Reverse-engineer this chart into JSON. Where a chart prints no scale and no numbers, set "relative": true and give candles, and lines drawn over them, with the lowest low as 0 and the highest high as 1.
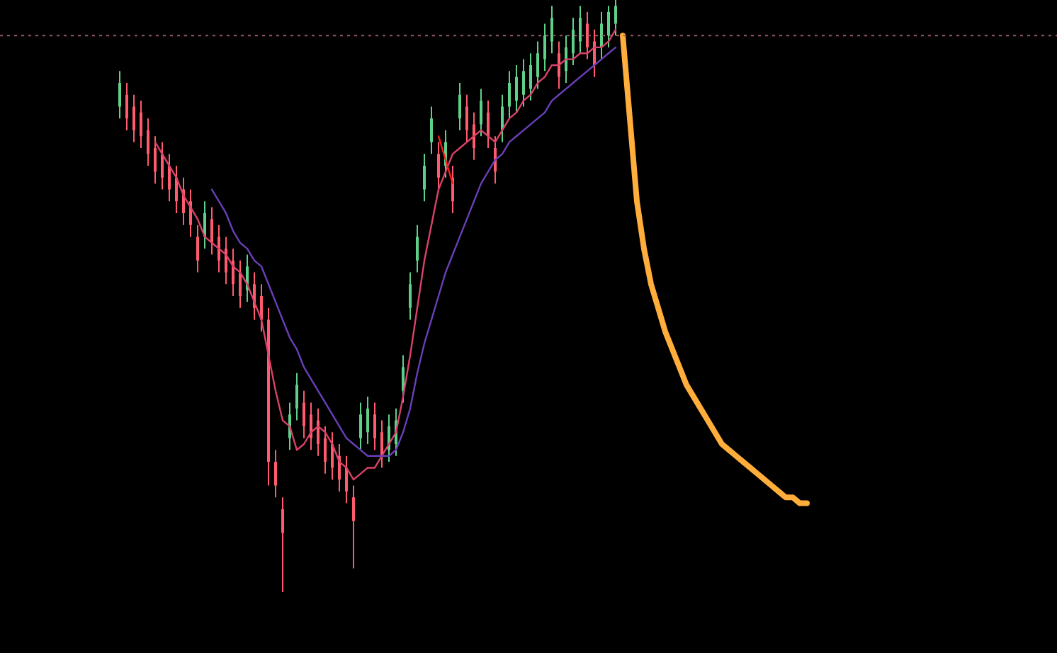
{
  "chart_data": {
    "type": "candlestick",
    "relative": true,
    "categories": [
      null,
      null,
      null,
      null,
      null,
      null,
      null,
      null,
      null,
      null,
      null,
      null,
      null,
      null,
      null,
      null,
      null,
      null,
      null,
      null,
      null,
      null,
      null,
      null,
      null,
      null,
      null,
      null,
      null,
      null,
      null,
      null,
      null,
      null,
      null,
      null,
      null,
      null,
      null,
      null,
      null,
      null,
      null,
      null,
      null,
      null,
      null,
      null,
      null,
      null,
      null,
      null,
      null,
      null,
      null,
      null,
      null,
      null,
      null,
      null,
      null,
      null,
      null,
      null,
      null,
      null,
      null,
      null,
      null,
      null,
      null,
      null,
      null,
      null,
      null,
      null,
      null,
      null,
      null,
      null,
      null,
      null,
      null,
      null,
      null,
      null,
      null,
      null,
      null,
      null,
      null,
      null,
      null,
      null,
      null,
      null,
      null,
      null
    ],
    "ref_lines": [
      {
        "axis": "y",
        "value": 0.94,
        "color": "#9a5a66",
        "line_style": "dotted"
      }
    ],
    "series": [
      {
        "ohlc": [
          [
            0.82,
            0.88,
            0.8,
            0.86
          ],
          [
            0.84,
            0.86,
            0.78,
            0.8
          ],
          [
            0.82,
            0.84,
            0.76,
            0.78
          ],
          [
            0.81,
            0.83,
            0.75,
            0.77
          ],
          [
            0.78,
            0.8,
            0.72,
            0.74
          ],
          [
            0.75,
            0.77,
            0.69,
            0.71
          ],
          [
            0.74,
            0.76,
            0.68,
            0.7
          ],
          [
            0.72,
            0.74,
            0.66,
            0.68
          ],
          [
            0.7,
            0.72,
            0.64,
            0.66
          ],
          [
            0.68,
            0.7,
            0.62,
            0.64
          ],
          [
            0.66,
            0.68,
            0.6,
            0.62
          ],
          [
            0.6,
            0.62,
            0.54,
            0.56
          ],
          [
            0.6,
            0.66,
            0.58,
            0.64
          ],
          [
            0.63,
            0.65,
            0.57,
            0.59
          ],
          [
            0.6,
            0.62,
            0.54,
            0.56
          ],
          [
            0.58,
            0.6,
            0.52,
            0.54
          ],
          [
            0.56,
            0.58,
            0.5,
            0.52
          ],
          [
            0.54,
            0.56,
            0.48,
            0.5
          ],
          [
            0.51,
            0.57,
            0.49,
            0.55
          ],
          [
            0.52,
            0.54,
            0.46,
            0.48
          ],
          [
            0.5,
            0.52,
            0.44,
            0.46
          ],
          [
            0.46,
            0.48,
            0.18,
            0.22
          ],
          [
            0.22,
            0.24,
            0.16,
            0.18
          ],
          [
            0.14,
            0.16,
            0.0,
            0.1
          ],
          [
            0.26,
            0.32,
            0.24,
            0.3
          ],
          [
            0.31,
            0.37,
            0.29,
            0.35
          ],
          [
            0.32,
            0.34,
            0.26,
            0.28
          ],
          [
            0.3,
            0.32,
            0.24,
            0.26
          ],
          [
            0.29,
            0.31,
            0.23,
            0.25
          ],
          [
            0.26,
            0.28,
            0.2,
            0.22
          ],
          [
            0.25,
            0.27,
            0.19,
            0.21
          ],
          [
            0.23,
            0.25,
            0.17,
            0.19
          ],
          [
            0.21,
            0.23,
            0.15,
            0.17
          ],
          [
            0.16,
            0.18,
            0.04,
            0.12
          ],
          [
            0.26,
            0.32,
            0.24,
            0.3
          ],
          [
            0.27,
            0.33,
            0.25,
            0.31
          ],
          [
            0.3,
            0.32,
            0.24,
            0.26
          ],
          [
            0.27,
            0.29,
            0.21,
            0.23
          ],
          [
            0.24,
            0.3,
            0.22,
            0.28
          ],
          [
            0.25,
            0.31,
            0.23,
            0.29
          ],
          [
            0.34,
            0.4,
            0.32,
            0.38
          ],
          [
            0.48,
            0.54,
            0.46,
            0.52
          ],
          [
            0.56,
            0.62,
            0.54,
            0.6
          ],
          [
            0.68,
            0.74,
            0.66,
            0.72
          ],
          [
            0.76,
            0.82,
            0.74,
            0.8
          ],
          [
            0.74,
            0.76,
            0.68,
            0.7
          ],
          [
            0.72,
            0.78,
            0.7,
            0.76
          ],
          [
            0.7,
            0.72,
            0.64,
            0.66
          ],
          [
            0.8,
            0.86,
            0.78,
            0.84
          ],
          [
            0.82,
            0.84,
            0.76,
            0.78
          ],
          [
            0.79,
            0.81,
            0.73,
            0.75
          ],
          [
            0.79,
            0.85,
            0.77,
            0.83
          ],
          [
            0.81,
            0.83,
            0.75,
            0.77
          ],
          [
            0.75,
            0.77,
            0.69,
            0.71
          ],
          [
            0.78,
            0.84,
            0.76,
            0.82
          ],
          [
            0.82,
            0.88,
            0.8,
            0.86
          ],
          [
            0.83,
            0.89,
            0.81,
            0.87
          ],
          [
            0.84,
            0.9,
            0.82,
            0.88
          ],
          [
            0.85,
            0.91,
            0.83,
            0.89
          ],
          [
            0.87,
            0.93,
            0.85,
            0.91
          ],
          [
            0.9,
            0.96,
            0.88,
            0.94
          ],
          [
            0.93,
            0.99,
            0.91,
            0.97
          ],
          [
            0.91,
            0.93,
            0.85,
            0.87
          ],
          [
            0.88,
            0.94,
            0.86,
            0.92
          ],
          [
            0.91,
            0.97,
            0.89,
            0.95
          ],
          [
            0.93,
            0.99,
            0.91,
            0.97
          ],
          [
            0.96,
            0.98,
            0.9,
            0.92
          ],
          [
            0.93,
            0.95,
            0.87,
            0.89
          ],
          [
            0.92,
            0.98,
            0.9,
            0.96
          ],
          [
            0.94,
            0.99,
            0.92,
            0.98
          ],
          [
            0.96,
            1.0,
            0.94,
            0.99
          ],
          null,
          null,
          null,
          null,
          null,
          null,
          null,
          null,
          null,
          null,
          null,
          null,
          null,
          null,
          null,
          null,
          null,
          null,
          null,
          null,
          null,
          null,
          null,
          null,
          null,
          null,
          null
        ],
        "colors": [
          "#5fd08a",
          "#ff5a6e",
          "#ff5a6e",
          "#ff5a6e",
          "#ff5a6e",
          "#ff5a6e",
          "#ff5a6e",
          "#ff5a6e",
          "#ff5a6e",
          "#ff5a6e",
          "#ff5a6e",
          "#ff5a6e",
          "#5fd08a",
          "#ff5a6e",
          "#ff5a6e",
          "#ff5a6e",
          "#ff5a6e",
          "#ff5a6e",
          "#5fd08a",
          "#ff5a6e",
          "#ff5a6e",
          "#ff5a6e",
          "#ff5a6e",
          "#ff5a6e",
          "#5fd08a",
          "#5fd08a",
          "#ff5a6e",
          "#ff5a6e",
          "#ff5a6e",
          "#ff5a6e",
          "#ff5a6e",
          "#ff5a6e",
          "#ff5a6e",
          "#ff5a6e",
          "#5fd08a",
          "#5fd08a",
          "#ff5a6e",
          "#ff5a6e",
          "#5fd08a",
          "#5fd08a",
          "#5fd08a",
          "#5fd08a",
          "#5fd08a",
          "#5fd08a",
          "#5fd08a",
          "#ff5a6e",
          "#5fd08a",
          "#ff5a6e",
          "#5fd08a",
          "#ff5a6e",
          "#ff5a6e",
          "#5fd08a",
          "#ff5a6e",
          "#ff5a6e",
          "#5fd08a",
          "#5fd08a",
          "#5fd08a",
          "#5fd08a",
          "#5fd08a",
          "#5fd08a",
          "#5fd08a",
          "#5fd08a",
          "#ff5a6e",
          "#5fd08a",
          "#5fd08a",
          "#5fd08a",
          "#ff5a6e",
          "#ff5a6e",
          "#5fd08a",
          "#5fd08a",
          "#5fd08a",
          "#5fd08a",
          "#5fd08a",
          null,
          null,
          null,
          null,
          null,
          null,
          null,
          null,
          null,
          null,
          null,
          null,
          null,
          null,
          null,
          null,
          null,
          null,
          null,
          null,
          null,
          null,
          null,
          null,
          null
        ]
      },
      {
        "type": "line",
        "color": "#d9426a",
        "values": [
          null,
          null,
          null,
          null,
          null,
          0.76,
          0.74,
          0.72,
          0.7,
          0.67,
          0.65,
          0.63,
          0.6,
          0.59,
          0.58,
          0.57,
          0.55,
          0.54,
          0.52,
          0.49,
          0.46,
          0.4,
          0.34,
          0.29,
          0.28,
          0.24,
          0.25,
          0.27,
          0.28,
          0.27,
          0.25,
          0.22,
          0.21,
          0.19,
          0.2,
          0.21,
          0.21,
          0.23,
          0.25,
          0.27,
          0.33,
          0.4,
          0.48,
          0.56,
          0.62,
          0.68,
          0.71,
          0.74,
          0.75,
          0.76,
          0.77,
          0.78,
          0.77,
          0.76,
          0.78,
          0.8,
          0.81,
          0.83,
          0.84,
          0.86,
          0.87,
          0.89,
          0.89,
          0.9,
          0.9,
          0.91,
          0.91,
          0.92,
          0.92,
          0.93,
          0.95,
          null,
          null,
          null,
          null,
          null,
          null,
          null,
          null,
          null,
          null,
          null,
          null,
          null,
          null,
          null,
          null,
          null,
          null,
          null,
          null,
          null,
          null,
          null,
          null,
          null,
          null,
          null
        ]
      },
      {
        "type": "line",
        "color": "#6a3fb8",
        "values": [
          null,
          null,
          null,
          null,
          null,
          null,
          null,
          null,
          null,
          null,
          null,
          null,
          null,
          0.68,
          0.66,
          0.64,
          0.61,
          0.59,
          0.58,
          0.56,
          0.55,
          0.52,
          0.49,
          0.46,
          0.43,
          0.41,
          0.38,
          0.36,
          0.34,
          0.32,
          0.3,
          0.28,
          0.26,
          0.25,
          0.24,
          0.23,
          0.23,
          0.23,
          0.23,
          0.24,
          0.27,
          0.31,
          0.37,
          0.42,
          0.46,
          0.5,
          0.54,
          0.57,
          0.6,
          0.63,
          0.66,
          0.69,
          0.71,
          0.73,
          0.74,
          0.76,
          0.77,
          0.78,
          0.79,
          0.8,
          0.81,
          0.83,
          0.84,
          0.85,
          0.86,
          0.87,
          0.88,
          0.89,
          0.9,
          0.91,
          0.92,
          null,
          null,
          null,
          null,
          null,
          null,
          null,
          null,
          null,
          null,
          null,
          null,
          null,
          null,
          null,
          null,
          null,
          null,
          null,
          null,
          null,
          null,
          null,
          null,
          null,
          null,
          null
        ]
      },
      {
        "type": "line",
        "color": "#ff1a1a",
        "values": [
          null,
          null,
          null,
          null,
          null,
          null,
          null,
          null,
          null,
          null,
          null,
          null,
          null,
          null,
          null,
          null,
          null,
          null,
          null,
          null,
          null,
          null,
          null,
          null,
          null,
          null,
          null,
          null,
          null,
          null,
          null,
          null,
          null,
          null,
          null,
          null,
          null,
          null,
          null,
          null,
          null,
          null,
          null,
          null,
          null,
          0.77,
          0.73,
          0.69,
          null,
          null,
          null,
          null,
          null,
          null,
          null,
          null,
          null,
          null,
          null,
          null,
          null,
          null,
          null,
          null,
          null,
          null,
          null,
          null,
          null,
          null,
          null,
          null,
          null,
          null,
          null,
          null,
          null,
          null,
          null,
          null,
          null,
          null,
          null,
          null,
          null,
          null,
          null,
          null,
          null,
          null,
          null,
          null,
          null,
          null,
          null,
          null,
          null,
          null
        ]
      },
      {
        "type": "line",
        "color": "#ffad3b",
        "values": [
          null,
          null,
          null,
          null,
          null,
          null,
          null,
          null,
          null,
          null,
          null,
          null,
          null,
          null,
          null,
          null,
          null,
          null,
          null,
          null,
          null,
          null,
          null,
          null,
          null,
          null,
          null,
          null,
          null,
          null,
          null,
          null,
          null,
          null,
          null,
          null,
          null,
          null,
          null,
          null,
          null,
          null,
          null,
          null,
          null,
          null,
          null,
          null,
          null,
          null,
          null,
          null,
          null,
          null,
          null,
          null,
          null,
          null,
          null,
          null,
          null,
          null,
          null,
          null,
          null,
          null,
          null,
          null,
          null,
          null,
          null,
          0.94,
          0.8,
          0.66,
          0.58,
          0.52,
          0.48,
          0.44,
          0.41,
          0.38,
          0.35,
          0.33,
          0.31,
          0.29,
          0.27,
          0.25,
          0.24,
          0.23,
          0.22,
          0.21,
          0.2,
          0.19,
          0.18,
          0.17,
          0.16,
          0.16,
          0.15,
          0.15
        ]
      }
    ]
  }
}
